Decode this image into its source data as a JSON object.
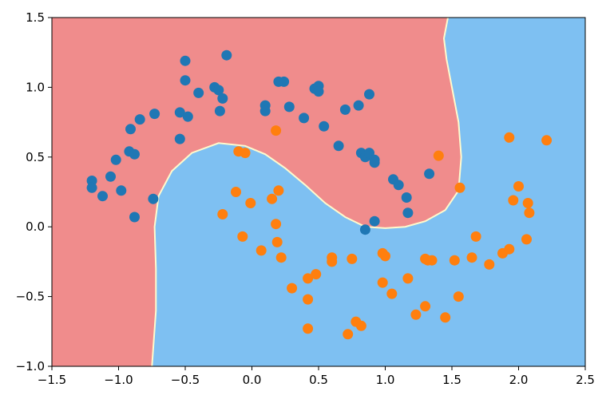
{
  "chart_data": {
    "type": "scatter",
    "title": "",
    "xlabel": "",
    "ylabel": "",
    "xlim": [
      -1.5,
      2.5
    ],
    "ylim": [
      -1.0,
      1.5
    ],
    "grid": false,
    "x_ticks": [
      -1.5,
      -1.0,
      -0.5,
      0.0,
      0.5,
      1.0,
      1.5,
      2.0,
      2.5
    ],
    "x_tick_labels": [
      "−1.5",
      "−1.0",
      "−0.5",
      "0.0",
      "0.5",
      "1.0",
      "1.5",
      "2.0",
      "2.5"
    ],
    "y_ticks": [
      -1.0,
      -0.5,
      0.0,
      0.5,
      1.0,
      1.5
    ],
    "y_tick_labels": [
      "−1.0",
      "−0.5",
      "0.0",
      "0.5",
      "1.0",
      "1.5"
    ],
    "decision_regions": [
      {
        "class": 0,
        "color": "#f08c8c"
      },
      {
        "class": 1,
        "color": "#7ec0f2"
      }
    ],
    "decision_boundary_color": "#fffacd",
    "decision_boundary": [
      [
        -0.75,
        -1.0
      ],
      [
        -0.72,
        -0.6
      ],
      [
        -0.72,
        -0.3
      ],
      [
        -0.73,
        0.0
      ],
      [
        -0.7,
        0.22
      ],
      [
        -0.6,
        0.4
      ],
      [
        -0.45,
        0.53
      ],
      [
        -0.25,
        0.6
      ],
      [
        -0.05,
        0.58
      ],
      [
        0.1,
        0.52
      ],
      [
        0.25,
        0.42
      ],
      [
        0.4,
        0.3
      ],
      [
        0.55,
        0.17
      ],
      [
        0.7,
        0.07
      ],
      [
        0.85,
        0.0
      ],
      [
        1.0,
        -0.01
      ],
      [
        1.15,
        0.0
      ],
      [
        1.3,
        0.04
      ],
      [
        1.45,
        0.12
      ],
      [
        1.55,
        0.26
      ],
      [
        1.57,
        0.5
      ],
      [
        1.55,
        0.75
      ],
      [
        1.5,
        1.0
      ],
      [
        1.46,
        1.2
      ],
      [
        1.44,
        1.35
      ],
      [
        1.47,
        1.5
      ]
    ],
    "series": [
      {
        "color": "#1f77b4",
        "points": [
          [
            -0.5,
            1.19
          ],
          [
            -0.19,
            1.23
          ],
          [
            -0.5,
            1.05
          ],
          [
            -0.4,
            0.96
          ],
          [
            -0.28,
            1.0
          ],
          [
            -0.25,
            0.98
          ],
          [
            -0.22,
            0.92
          ],
          [
            -0.24,
            0.83
          ],
          [
            -0.54,
            0.82
          ],
          [
            -0.48,
            0.79
          ],
          [
            -0.73,
            0.81
          ],
          [
            -0.84,
            0.77
          ],
          [
            -0.91,
            0.7
          ],
          [
            -0.54,
            0.63
          ],
          [
            -0.92,
            0.54
          ],
          [
            -0.88,
            0.52
          ],
          [
            -1.02,
            0.48
          ],
          [
            -1.06,
            0.36
          ],
          [
            -1.2,
            0.33
          ],
          [
            -1.2,
            0.28
          ],
          [
            -0.98,
            0.26
          ],
          [
            -1.12,
            0.22
          ],
          [
            -0.74,
            0.2
          ],
          [
            -0.88,
            0.07
          ],
          [
            0.1,
            0.87
          ],
          [
            0.1,
            0.83
          ],
          [
            0.2,
            1.04
          ],
          [
            0.24,
            1.04
          ],
          [
            0.28,
            0.86
          ],
          [
            0.39,
            0.78
          ],
          [
            0.47,
            0.99
          ],
          [
            0.5,
            1.01
          ],
          [
            0.5,
            0.97
          ],
          [
            0.54,
            0.72
          ],
          [
            0.65,
            0.58
          ],
          [
            0.7,
            0.84
          ],
          [
            0.8,
            0.87
          ],
          [
            0.88,
            0.95
          ],
          [
            0.82,
            0.53
          ],
          [
            0.85,
            0.5
          ],
          [
            0.88,
            0.53
          ],
          [
            0.92,
            0.48
          ],
          [
            0.92,
            0.46
          ],
          [
            1.06,
            0.34
          ],
          [
            1.1,
            0.3
          ],
          [
            1.16,
            0.21
          ],
          [
            1.17,
            0.1
          ],
          [
            1.33,
            0.38
          ],
          [
            0.92,
            0.04
          ],
          [
            0.85,
            -0.02
          ]
        ]
      },
      {
        "color": "#ff7f0e",
        "points": [
          [
            0.18,
            0.69
          ],
          [
            -0.1,
            0.54
          ],
          [
            -0.05,
            0.53
          ],
          [
            -0.12,
            0.25
          ],
          [
            -0.01,
            0.17
          ],
          [
            0.15,
            0.2
          ],
          [
            0.2,
            0.26
          ],
          [
            -0.22,
            0.09
          ],
          [
            -0.07,
            -0.07
          ],
          [
            0.18,
            0.02
          ],
          [
            0.19,
            -0.11
          ],
          [
            0.07,
            -0.17
          ],
          [
            0.22,
            -0.22
          ],
          [
            0.3,
            -0.44
          ],
          [
            0.42,
            -0.37
          ],
          [
            0.48,
            -0.34
          ],
          [
            0.42,
            -0.52
          ],
          [
            0.6,
            -0.25
          ],
          [
            0.6,
            -0.22
          ],
          [
            0.75,
            -0.23
          ],
          [
            0.42,
            -0.73
          ],
          [
            0.72,
            -0.77
          ],
          [
            0.78,
            -0.68
          ],
          [
            0.82,
            -0.71
          ],
          [
            0.98,
            -0.19
          ],
          [
            1.0,
            -0.21
          ],
          [
            0.98,
            -0.4
          ],
          [
            1.05,
            -0.48
          ],
          [
            1.17,
            -0.37
          ],
          [
            1.23,
            -0.63
          ],
          [
            1.3,
            -0.23
          ],
          [
            1.32,
            -0.24
          ],
          [
            1.35,
            -0.24
          ],
          [
            1.3,
            -0.57
          ],
          [
            1.45,
            -0.65
          ],
          [
            1.52,
            -0.24
          ],
          [
            1.55,
            -0.5
          ],
          [
            1.68,
            -0.07
          ],
          [
            1.65,
            -0.22
          ],
          [
            1.78,
            -0.27
          ],
          [
            1.88,
            -0.19
          ],
          [
            1.93,
            -0.16
          ],
          [
            1.93,
            0.64
          ],
          [
            1.96,
            0.19
          ],
          [
            2.0,
            0.29
          ],
          [
            2.07,
            0.17
          ],
          [
            2.08,
            0.1
          ],
          [
            2.06,
            -0.09
          ],
          [
            2.21,
            0.62
          ],
          [
            1.4,
            0.51
          ],
          [
            1.56,
            0.28
          ]
        ]
      }
    ]
  }
}
